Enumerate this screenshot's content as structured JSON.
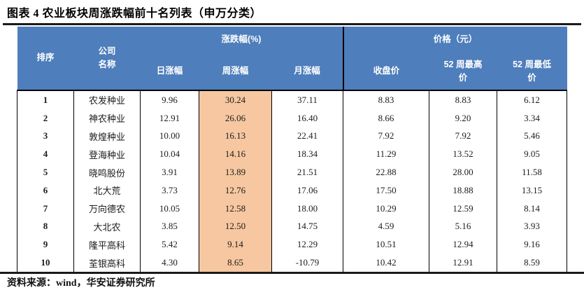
{
  "title": "图表 4 农业板块周涨跌幅前十名列表（申万分类）",
  "source_note": "资料来源：wind，华安证券研究所",
  "colors": {
    "header_blue": "#4e7ebb",
    "highlight_peach": "#f6c7a0",
    "border_black": "#000000",
    "header_text": "#ffffff"
  },
  "table": {
    "headers": {
      "rank": "排序",
      "company": "公司\n名称",
      "change_group": "涨跌幅(%)",
      "price_group": "价格（元）",
      "daily": "日涨幅",
      "weekly": "周涨幅",
      "monthly": "月涨幅",
      "close": "收盘价",
      "high52": "52 周最高\n价",
      "low52": "52 周最低\n价"
    },
    "rows": [
      {
        "rank": "1",
        "company": "农发种业",
        "daily": "9.96",
        "weekly": "30.24",
        "monthly": "37.11",
        "close": "8.83",
        "high52": "8.83",
        "low52": "6.12"
      },
      {
        "rank": "2",
        "company": "神农种业",
        "daily": "12.91",
        "weekly": "26.06",
        "monthly": "16.40",
        "close": "8.66",
        "high52": "9.20",
        "low52": "3.34"
      },
      {
        "rank": "3",
        "company": "敦煌种业",
        "daily": "10.00",
        "weekly": "16.13",
        "monthly": "22.41",
        "close": "7.92",
        "high52": "7.92",
        "low52": "5.46"
      },
      {
        "rank": "4",
        "company": "登海种业",
        "daily": "10.04",
        "weekly": "14.16",
        "monthly": "18.34",
        "close": "11.29",
        "high52": "13.52",
        "low52": "9.05"
      },
      {
        "rank": "5",
        "company": "晓鸣股份",
        "daily": "3.91",
        "weekly": "13.89",
        "monthly": "21.51",
        "close": "22.88",
        "high52": "28.00",
        "low52": "11.58"
      },
      {
        "rank": "6",
        "company": "北大荒",
        "daily": "3.73",
        "weekly": "12.76",
        "monthly": "17.06",
        "close": "17.50",
        "high52": "18.88",
        "low52": "13.15"
      },
      {
        "rank": "7",
        "company": "万向德农",
        "daily": "10.05",
        "weekly": "12.58",
        "monthly": "18.00",
        "close": "10.29",
        "high52": "12.59",
        "low52": "8.14"
      },
      {
        "rank": "8",
        "company": "大北农",
        "daily": "3.85",
        "weekly": "12.50",
        "monthly": "14.75",
        "close": "4.59",
        "high52": "5.16",
        "low52": "3.93"
      },
      {
        "rank": "9",
        "company": "隆平高科",
        "daily": "5.42",
        "weekly": "9.14",
        "monthly": "12.29",
        "close": "10.51",
        "high52": "12.94",
        "low52": "9.16"
      },
      {
        "rank": "10",
        "company": "荃银高科",
        "daily": "4.30",
        "weekly": "8.65",
        "monthly": "-10.79",
        "close": "10.42",
        "high52": "12.91",
        "low52": "8.59"
      }
    ]
  },
  "chart_data": {
    "type": "table",
    "title": "图表 4 农业板块周涨跌幅前十名列表（申万分类）",
    "columns": [
      "排序",
      "公司名称",
      "日涨幅",
      "周涨幅",
      "月涨幅",
      "收盘价",
      "52周最高价",
      "52周最低价"
    ],
    "rows": [
      [
        "1",
        "农发种业",
        9.96,
        30.24,
        37.11,
        8.83,
        8.83,
        6.12
      ],
      [
        "2",
        "神农种业",
        12.91,
        26.06,
        16.4,
        8.66,
        9.2,
        3.34
      ],
      [
        "3",
        "敦煌种业",
        10.0,
        16.13,
        22.41,
        7.92,
        7.92,
        5.46
      ],
      [
        "4",
        "登海种业",
        10.04,
        14.16,
        18.34,
        11.29,
        13.52,
        9.05
      ],
      [
        "5",
        "晓鸣股份",
        3.91,
        13.89,
        21.51,
        22.88,
        28.0,
        11.58
      ],
      [
        "6",
        "北大荒",
        3.73,
        12.76,
        17.06,
        17.5,
        18.88,
        13.15
      ],
      [
        "7",
        "万向德农",
        10.05,
        12.58,
        18.0,
        10.29,
        12.59,
        8.14
      ],
      [
        "8",
        "大北农",
        3.85,
        12.5,
        14.75,
        4.59,
        5.16,
        3.93
      ],
      [
        "9",
        "隆平高科",
        5.42,
        9.14,
        12.29,
        10.51,
        12.94,
        9.16
      ],
      [
        "10",
        "荃银高科",
        4.3,
        8.65,
        -10.79,
        10.42,
        12.91,
        8.59
      ]
    ]
  }
}
